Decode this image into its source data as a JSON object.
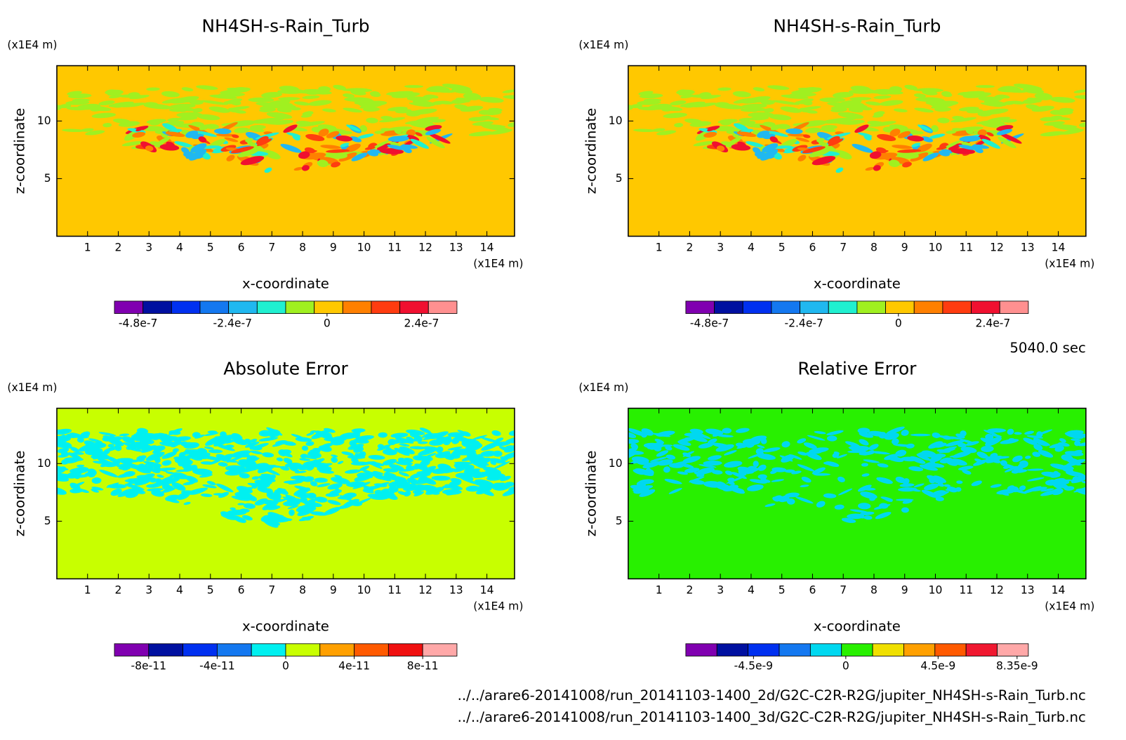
{
  "chart_data": [
    {
      "type": "contour",
      "title": "NH4SH-s-Rain_Turb",
      "x_label": "x-coordinate",
      "y_label": "z-coordinate",
      "x_unit": "(x1E4 m)",
      "y_unit": "(x1E4 m)",
      "xlim": [
        0,
        14.9
      ],
      "ylim": [
        0,
        14.8
      ],
      "xticks": [
        1,
        2,
        3,
        4,
        5,
        6,
        7,
        8,
        9,
        10,
        11,
        12,
        13,
        14
      ],
      "yticks": [
        5,
        10
      ],
      "background": "#ffc800",
      "colorbar": {
        "lim": [
          -5.4e-07,
          3.3e-07
        ],
        "ticks": [
          -4.8e-07,
          -2.4e-07,
          0,
          2.4e-07
        ],
        "colors": [
          "#8000b0",
          "#0010a0",
          "#0030f0",
          "#1478f0",
          "#20b8f0",
          "#20f0d0",
          "#a0f020",
          "#ffc800",
          "#ff8000",
          "#ff3c10",
          "#f01030",
          "#ff9090"
        ]
      }
    },
    {
      "type": "contour",
      "title": "NH4SH-s-Rain_Turb",
      "x_label": "x-coordinate",
      "y_label": "z-coordinate",
      "x_unit": "(x1E4 m)",
      "y_unit": "(x1E4 m)",
      "xlim": [
        0,
        14.9
      ],
      "ylim": [
        0,
        14.8
      ],
      "xticks": [
        1,
        2,
        3,
        4,
        5,
        6,
        7,
        8,
        9,
        10,
        11,
        12,
        13,
        14
      ],
      "yticks": [
        5,
        10
      ],
      "background": "#ffc800",
      "colorbar": {
        "lim": [
          -5.4e-07,
          3.3e-07
        ],
        "ticks": [
          -4.8e-07,
          -2.4e-07,
          0,
          2.4e-07
        ],
        "colors": [
          "#8000b0",
          "#0010a0",
          "#0030f0",
          "#1478f0",
          "#20b8f0",
          "#20f0d0",
          "#a0f020",
          "#ffc800",
          "#ff8000",
          "#ff3c10",
          "#f01030",
          "#ff9090"
        ]
      }
    },
    {
      "type": "contour",
      "title": "Absolute Error",
      "x_label": "x-coordinate",
      "y_label": "z-coordinate",
      "x_unit": "(x1E4 m)",
      "y_unit": "(x1E4 m)",
      "xlim": [
        0,
        14.9
      ],
      "ylim": [
        0,
        14.8
      ],
      "xticks": [
        1,
        2,
        3,
        4,
        5,
        6,
        7,
        8,
        9,
        10,
        11,
        12,
        13,
        14
      ],
      "yticks": [
        5,
        10
      ],
      "background": "#c8ff00",
      "colorbar": {
        "lim": [
          -1e-10,
          1e-10
        ],
        "ticks": [
          -8e-11,
          -4e-11,
          0,
          4e-11,
          8e-11
        ],
        "colors": [
          "#8000b0",
          "#0010a0",
          "#0030f0",
          "#1478f0",
          "#00f0f0",
          "#c8ff00",
          "#ffa000",
          "#ff5a00",
          "#f01010",
          "#ffa8a8"
        ]
      }
    },
    {
      "type": "contour",
      "title": "Relative Error",
      "x_label": "x-coordinate",
      "y_label": "z-coordinate",
      "x_unit": "(x1E4 m)",
      "y_unit": "(x1E4 m)",
      "xlim": [
        0,
        14.9
      ],
      "ylim": [
        0,
        14.8
      ],
      "xticks": [
        1,
        2,
        3,
        4,
        5,
        6,
        7,
        8,
        9,
        10,
        11,
        12,
        13,
        14
      ],
      "yticks": [
        5,
        10
      ],
      "background": "#28f000",
      "colorbar": {
        "lim": [
          -7.8e-09,
          8.9e-09
        ],
        "ticks": [
          -4.5e-09,
          0,
          4.5e-09,
          8.35e-09
        ],
        "colors": [
          "#8000b0",
          "#0010a0",
          "#0030f0",
          "#1478f0",
          "#00d8f0",
          "#28f000",
          "#f0e000",
          "#ffa000",
          "#ff5a00",
          "#f01830",
          "#ffa8a8"
        ]
      }
    }
  ],
  "time": "5040.0 sec",
  "files": [
    "../../arare6-20141008/run_20141103-1400_2d/G2C-C2R-R2G/jupiter_NH4SH-s-Rain_Turb.nc",
    "../../arare6-20141008/run_20141103-1400_3d/G2C-C2R-R2G/jupiter_NH4SH-s-Rain_Turb.nc"
  ]
}
